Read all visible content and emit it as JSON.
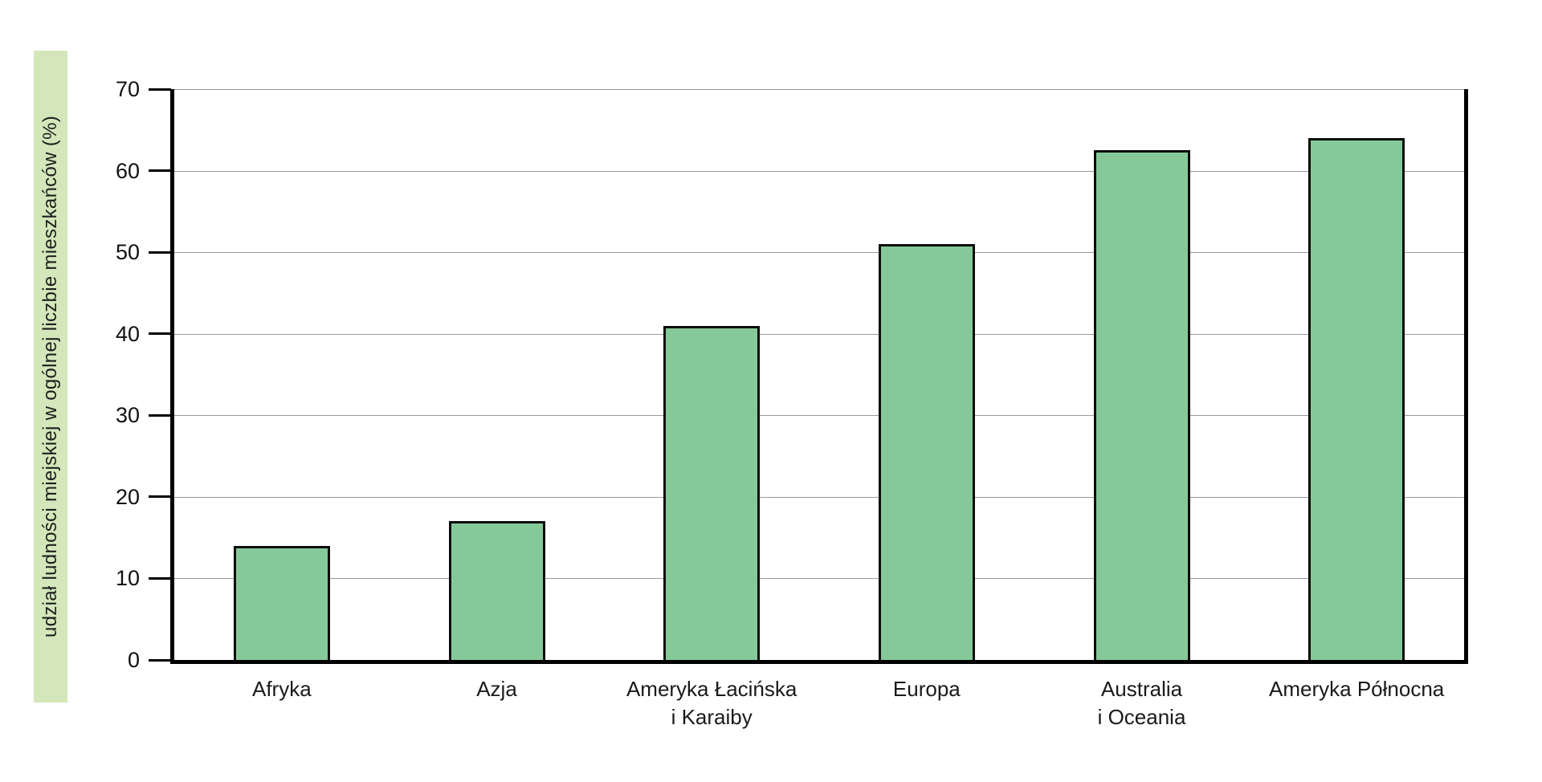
{
  "chart_data": {
    "type": "bar",
    "title": "",
    "categories": [
      "Afryka",
      "Azja",
      "Ameryka Łacińska\ni Karaiby",
      "Europa",
      "Australia\ni Oceania",
      "Ameryka Północna"
    ],
    "values": [
      14,
      17,
      41,
      51,
      62.5,
      64
    ],
    "xlabel": "",
    "ylabel": "udział ludności miejskiej w ogólnej liczbie mieszkańców (%)",
    "ylim": [
      0,
      70
    ],
    "yticks": [
      0,
      10,
      20,
      30,
      40,
      50,
      60,
      70
    ],
    "grid": true,
    "legend": "none",
    "colors": {
      "bar_fill": "#85c998",
      "bar_border": "#0d0d0d",
      "axis": "#000000",
      "gridline": "#999999",
      "tick": "#000000",
      "text": "#1a1a1a",
      "ylabel_background": "#d3e7bb",
      "background": "#ffffff"
    }
  }
}
